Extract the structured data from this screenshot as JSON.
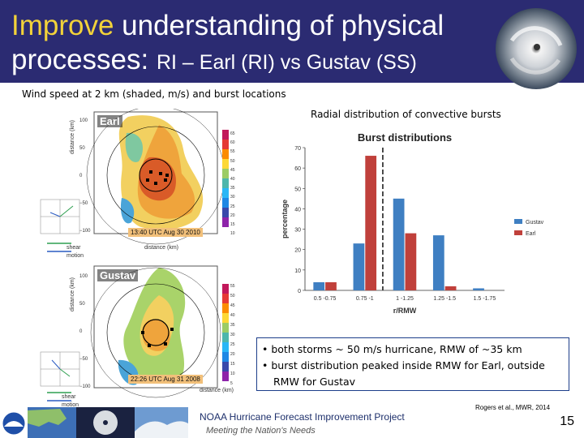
{
  "slide": {
    "title_highlight": "Improve",
    "title_rest": " understanding of physical",
    "title_line2_main": "processes: ",
    "title_line2_sub": "RI – Earl (RI) vs Gustav (SS)",
    "wind_caption": "Wind speed at 2 km (shaded, m/s) and burst locations",
    "radial_caption": "Radial distribution of convective bursts",
    "page_number": "15",
    "citation": "Rogers et al., MWR, 2014",
    "footer_project": "NOAA Hurricane Forecast Improvement Project",
    "footer_tagline": "Meeting the Nation's Needs"
  },
  "earl_panel": {
    "title": "Earl",
    "timestamp": "13:40 UTC Aug 30 2010",
    "y_label": "distance (km)",
    "x_label": "distance (km)",
    "ticks_y": [
      "100",
      "50",
      "0",
      "−50",
      "−100"
    ],
    "ticks_x": [
      "−50",
      "0",
      "50",
      "100"
    ],
    "colorbar_ticks": [
      "65",
      "60",
      "55",
      "50",
      "45",
      "40",
      "35",
      "30",
      "25",
      "20",
      "15",
      "10"
    ],
    "shear_label": "shear",
    "motion_label": "motion"
  },
  "gustav_panel": {
    "title": "Gustav",
    "timestamp": "22:26 UTC Aug 31 2008",
    "y_label": "distance (km)",
    "x_label": "distance (km)",
    "ticks_y": [
      "100",
      "50",
      "0",
      "−50",
      "−100"
    ],
    "ticks_x": [
      "−50",
      "0",
      "50",
      "100"
    ],
    "colorbar_ticks": [
      "55",
      "50",
      "45",
      "40",
      "35",
      "30",
      "25",
      "20",
      "15",
      "10",
      "5"
    ],
    "shear_label": "shear",
    "motion_label": "motion"
  },
  "bullets": {
    "b1": "• both storms ~ 50 m/s hurricane, RMW of ~35 km",
    "b2": "• burst distribution peaked inside RMW for Earl, outside",
    "b2_cont": "RMW for Gustav"
  },
  "colors": {
    "header_bg": "#2b2b72",
    "gustav": "#3f7fc2",
    "earl": "#c0403b",
    "title_highlight": "#f2d23a"
  },
  "chart_data": {
    "type": "bar",
    "title": "Burst distributions",
    "xlabel": "r/RMW",
    "ylabel": "percentage",
    "categories": [
      "0.5 -0.75",
      "0.75 -1",
      "1 -1.25",
      "1.25 -1.5",
      "1.5 -1.75"
    ],
    "series": [
      {
        "name": "Gustav",
        "values": [
          4,
          23,
          45,
          27,
          1
        ],
        "color": "#3f7fc2"
      },
      {
        "name": "Earl",
        "values": [
          4,
          66,
          28,
          2,
          0
        ],
        "color": "#c0403b"
      }
    ],
    "ylim": [
      0,
      70
    ],
    "yticks": [
      "0",
      "10",
      "20",
      "30",
      "40",
      "50",
      "60",
      "70"
    ],
    "grid": false,
    "legend": "right",
    "reference_line_at_category_boundary": "1"
  }
}
